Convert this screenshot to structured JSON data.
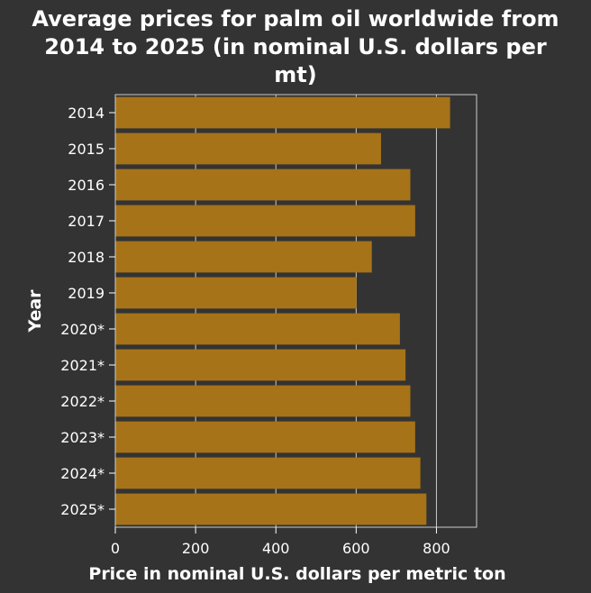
{
  "chart_data": {
    "type": "bar",
    "orientation": "horizontal",
    "title": "Average prices for palm oil worldwide from 2014 to 2025 (in nominal U.S. dollars per mt)",
    "title_lines": [
      "Average prices for palm oil worldwide from",
      "2014 to 2025 (in nominal U.S. dollars per",
      "mt)"
    ],
    "xlabel": "Price in nominal U.S. dollars per metric ton",
    "ylabel": "Year",
    "categories": [
      "2014",
      "2015",
      "2016",
      "2017",
      "2018",
      "2019",
      "2020*",
      "2021*",
      "2022*",
      "2023*",
      "2024*",
      "2025*"
    ],
    "values": [
      834,
      662,
      735,
      747,
      639,
      601,
      709,
      723,
      735,
      747,
      760,
      775
    ],
    "xlim": [
      0,
      900
    ],
    "xticks": [
      0,
      200,
      400,
      600,
      800
    ],
    "grid": true,
    "legend": "none",
    "colors": {
      "background": "#333333",
      "bar": "#a67319",
      "grid": "#cccccc",
      "text": "#ffffff"
    }
  }
}
